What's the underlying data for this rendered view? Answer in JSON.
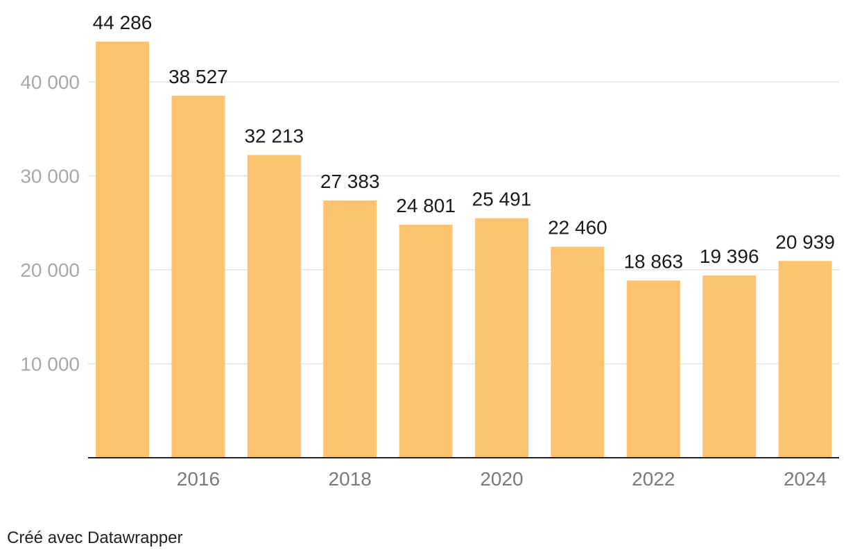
{
  "chart_data": {
    "type": "bar",
    "categories": [
      "2015",
      "2016",
      "2017",
      "2018",
      "2019",
      "2020",
      "2021",
      "2022",
      "2023",
      "2024"
    ],
    "values": [
      44286,
      38527,
      32213,
      27383,
      24801,
      25491,
      22460,
      18863,
      19396,
      20939
    ],
    "value_labels": [
      "44 286",
      "38 527",
      "32 213",
      "27 383",
      "24 801",
      "25 491",
      "22 460",
      "18 863",
      "19 396",
      "20 939"
    ],
    "x_tick_labels": [
      "",
      "2016",
      "",
      "2018",
      "",
      "2020",
      "",
      "2022",
      "",
      "2024"
    ],
    "y_ticks": [
      10000,
      20000,
      30000,
      40000
    ],
    "y_tick_labels": [
      "10 000",
      "20 000",
      "30 000",
      "40 000"
    ],
    "ylim": [
      0,
      44286
    ],
    "grid": true,
    "title": "",
    "xlabel": "",
    "ylabel": "",
    "colors": {
      "bar": "#fdc470",
      "grid": "#e3e3e3",
      "axis": "#222222"
    }
  },
  "footer": {
    "credit": "Créé avec Datawrapper"
  }
}
